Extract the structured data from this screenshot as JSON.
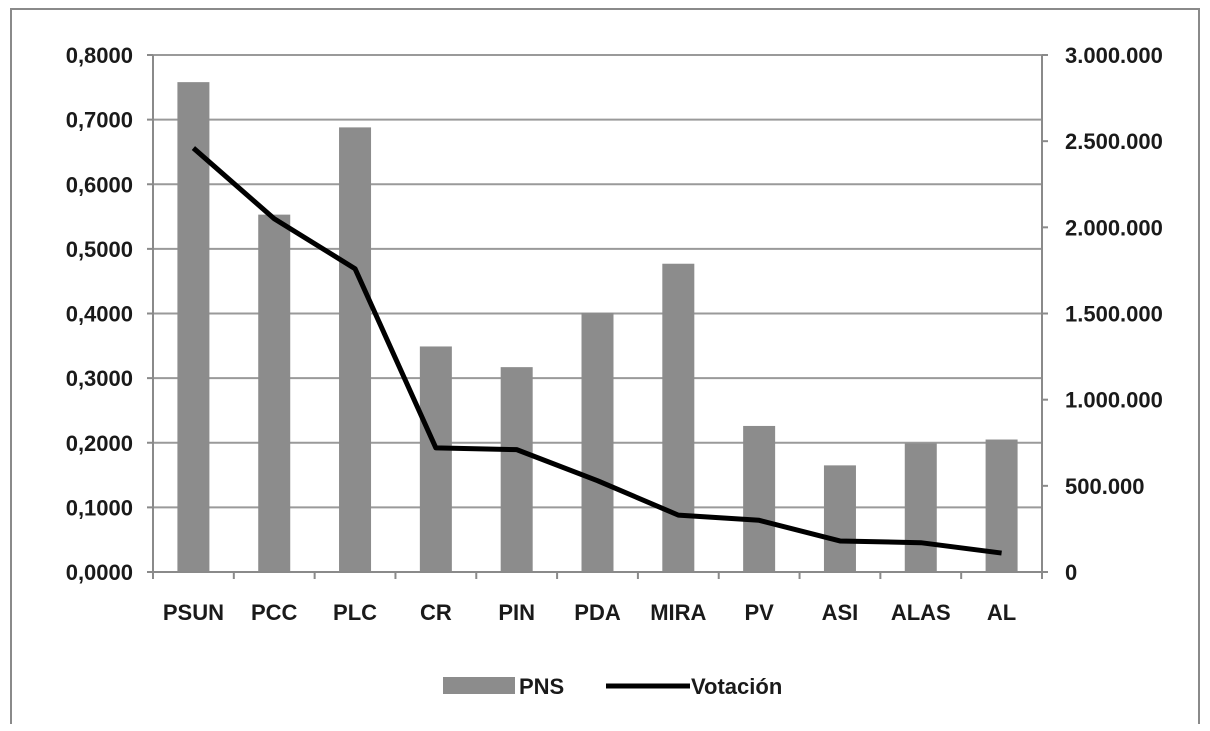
{
  "chart_data": {
    "type": "bar",
    "categories": [
      "PSUN",
      "PCC",
      "PLC",
      "CR",
      "PIN",
      "PDA",
      "MIRA",
      "PV",
      "ASI",
      "ALAS",
      "AL"
    ],
    "series": [
      {
        "name": "PNS",
        "type": "bar",
        "axis": "left",
        "color": "#8c8c8c",
        "values": [
          0.758,
          0.553,
          0.688,
          0.349,
          0.317,
          0.401,
          0.477,
          0.226,
          0.165,
          0.199,
          0.205
        ]
      },
      {
        "name": "Votación",
        "type": "line",
        "axis": "right",
        "color": "#000000",
        "values": [
          2460000,
          2050000,
          1760000,
          720000,
          710000,
          530000,
          330000,
          300000,
          180000,
          170000,
          110000
        ]
      }
    ],
    "ylim_left": [
      0,
      0.8
    ],
    "yticks_left": [
      "0,0000",
      "0,1000",
      "0,2000",
      "0,3000",
      "0,4000",
      "0,5000",
      "0,6000",
      "0,7000",
      "0,8000"
    ],
    "ylim_right": [
      0,
      3000000
    ],
    "yticks_right": [
      "0",
      "500.000",
      "1.000.000",
      "1.500.000",
      "2.000.000",
      "2.500.000",
      "3.000.000"
    ],
    "grid": true,
    "legend_position": "bottom",
    "legend": [
      "PNS",
      "Votación"
    ]
  }
}
